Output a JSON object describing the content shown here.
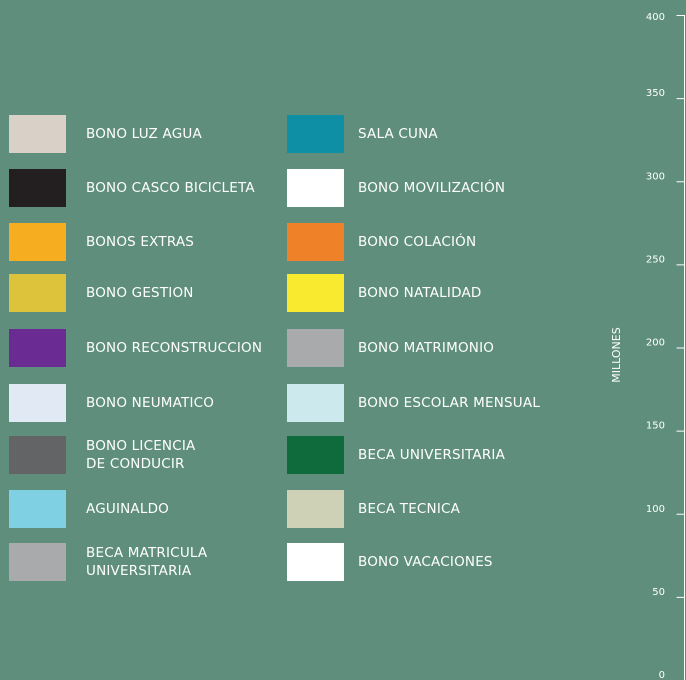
{
  "chart_data": {
    "type": "bar",
    "title": "",
    "xlabel": "",
    "ylabel": "MILLONES",
    "ylim": [
      0,
      400
    ],
    "y_ticks": [
      0,
      50,
      100,
      150,
      200,
      250,
      300,
      350,
      400
    ],
    "grid": false,
    "legend_placement": "left",
    "categories": [],
    "series": [
      {
        "name": "BONO LUZ AGUA",
        "color": "#d9d0c8",
        "values": []
      },
      {
        "name": "SALA CUNA",
        "color": "#0f8fa6",
        "values": []
      },
      {
        "name": "BONO CASCO BICICLETA",
        "color": "#231f20",
        "values": []
      },
      {
        "name": "BONO MOVILIZACIÓN",
        "color": "#ffffff",
        "values": []
      },
      {
        "name": "BONOS EXTRAS",
        "color": "#f6ad20",
        "values": []
      },
      {
        "name": "BONO COLACIÓN",
        "color": "#ef8229",
        "values": []
      },
      {
        "name": "BONO GESTION",
        "color": "#ddc33c",
        "values": []
      },
      {
        "name": "BONO NATALIDAD",
        "color": "#f9e92f",
        "values": []
      },
      {
        "name": "BONO RECONSTRUCCION",
        "color": "#6a2c92",
        "values": []
      },
      {
        "name": "BONO MATRIMONIO",
        "color": "#a9aaac",
        "values": []
      },
      {
        "name": "BONO NEUMATICO",
        "color": "#e1e9f4",
        "values": []
      },
      {
        "name": "BONO ESCOLAR MENSUAL",
        "color": "#cce9ee",
        "values": []
      },
      {
        "name": "BONO LICENCIA\nDE CONDUCIR",
        "color": "#636466",
        "values": []
      },
      {
        "name": "BECA UNIVERSITARIA",
        "color": "#0f6a3c",
        "values": []
      },
      {
        "name": "AGUINALDO",
        "color": "#7ed0e2",
        "values": []
      },
      {
        "name": "BECA TECNICA",
        "color": "#cfd1b6",
        "values": []
      },
      {
        "name": "BECA MATRICULA\nUNIVERSITARIA",
        "color": "#a9aaac",
        "values": []
      },
      {
        "name": "BONO VACACIONES",
        "color": "#ffffff",
        "values": []
      }
    ]
  }
}
